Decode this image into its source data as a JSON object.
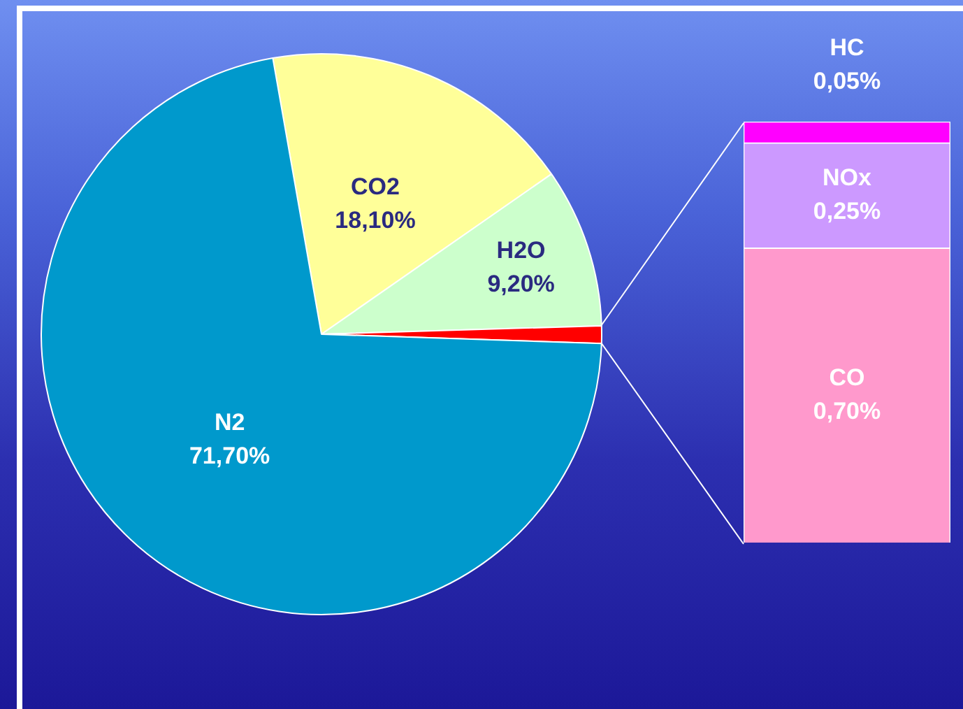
{
  "chart_data": [
    {
      "type": "pie",
      "categories": [
        "CO2",
        "H2O",
        null,
        "N2"
      ],
      "values": [
        18.1,
        9.2,
        1.0,
        71.7
      ],
      "colors": [
        "#ffff99",
        "#ccffcc",
        "#ff0000",
        "#0099cc"
      ],
      "value_labels": [
        "18,10%",
        "9,20%",
        null,
        "71,70%"
      ],
      "legend": false
    },
    {
      "type": "bar",
      "stacked": true,
      "categories": [
        null
      ],
      "tick_labels": false,
      "legend": false,
      "series": [
        {
          "name": "CO",
          "color": "#ff99cc",
          "values": [
            0.7
          ],
          "value_labels": [
            "0,70%"
          ]
        },
        {
          "name": "NOx",
          "color": "#cc99ff",
          "values": [
            0.25
          ],
          "value_labels": [
            "0,25%"
          ]
        },
        {
          "name": "HC",
          "color": "#ff00ff",
          "values": [
            0.05
          ],
          "value_labels": [
            "0,05%"
          ]
        }
      ]
    }
  ]
}
